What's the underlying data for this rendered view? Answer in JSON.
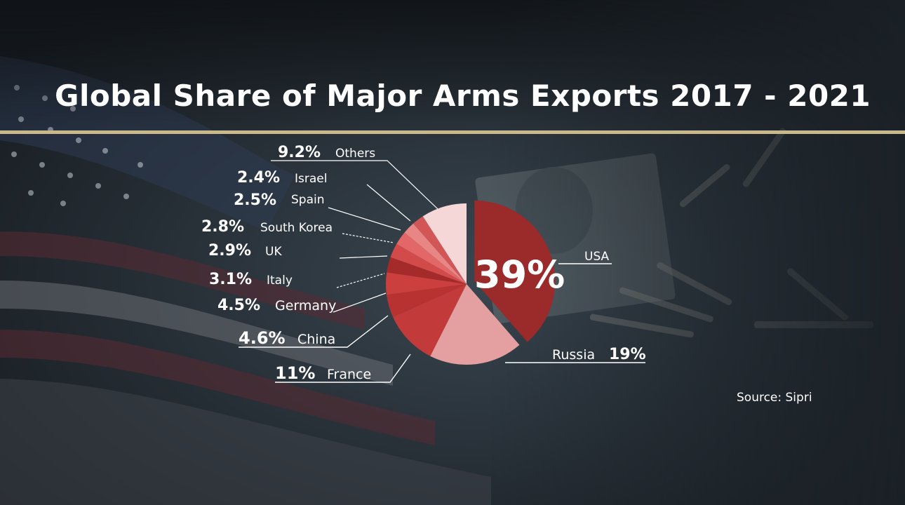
{
  "title": "Global Share of Major Arms Exports 2017 - 2021",
  "source": "Source: Sipri",
  "colors": {
    "usa": "#9b2a2a",
    "russia": "#e4a0a0",
    "france": "#c33a3a",
    "china": "#b83232",
    "germany": "#cc3f3f",
    "italy": "#a52a2a",
    "uk": "#d24a4a",
    "south_korea": "#e36767",
    "spain": "#e88585",
    "israel": "#d25656",
    "others": "#f6d7d7",
    "accent_rule": "#c9b98a"
  },
  "chart_data": {
    "type": "pie",
    "title": "Global Share of Major Arms Exports 2017 - 2021",
    "slices": [
      {
        "label": "USA",
        "display": "39%",
        "value": 39,
        "color": "#9b2a2a"
      },
      {
        "label": "Russia",
        "display": "19%",
        "value": 19,
        "color": "#e4a0a0"
      },
      {
        "label": "France",
        "display": "11%",
        "value": 11,
        "color": "#c33a3a"
      },
      {
        "label": "China",
        "display": "4.6%",
        "value": 4.6,
        "color": "#b83232"
      },
      {
        "label": "Germany",
        "display": "4.5%",
        "value": 4.5,
        "color": "#cc3f3f"
      },
      {
        "label": "Italy",
        "display": "3.1%",
        "value": 3.1,
        "color": "#a52a2a"
      },
      {
        "label": "UK",
        "display": "2.9%",
        "value": 2.9,
        "color": "#d24a4a"
      },
      {
        "label": "South Korea",
        "display": "2.8%",
        "value": 2.8,
        "color": "#e36767"
      },
      {
        "label": "Spain",
        "display": "2.5%",
        "value": 2.5,
        "color": "#e88585"
      },
      {
        "label": "Israel",
        "display": "2.4%",
        "value": 2.4,
        "color": "#d25656"
      },
      {
        "label": "Others",
        "display": "9.2%",
        "value": 9.2,
        "color": "#f6d7d7"
      }
    ]
  }
}
